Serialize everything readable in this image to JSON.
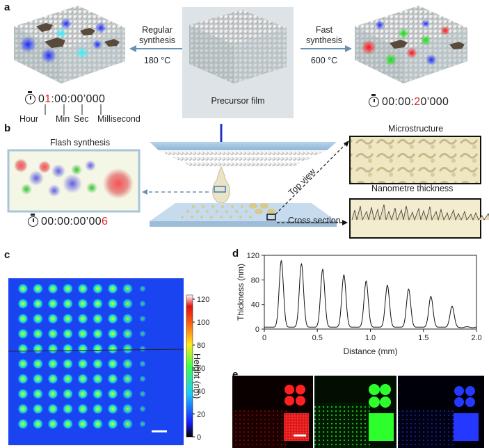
{
  "panels": {
    "a": "a",
    "b": "b",
    "c": "c",
    "d": "d",
    "e": "e"
  },
  "panel_a": {
    "regular_label": "Regular\nsynthesis",
    "regular_temp": "180 °C",
    "fast_label": "Fast\nsynthesis",
    "fast_temp": "600 °C",
    "precursor_label": "Precursor film",
    "timer_left": {
      "pre": "0",
      "red": "1",
      "post": ":00:00’000"
    },
    "timer_right": {
      "pre": "00:00:",
      "red": "2",
      "post": "0’000"
    },
    "time_units": [
      "Hour",
      "Min",
      "Sec",
      "Millisecond"
    ]
  },
  "panel_b": {
    "flash_title": "Flash synthesis",
    "timer_flash": {
      "pre": "00:00:00’00",
      "red": "6"
    },
    "microstructure": "Microstructure",
    "nanometre": "Nanometre thickness",
    "top_view": "Top view",
    "cross_section": "Cross section"
  },
  "panel_c": {
    "colorbar_title": "Height (nm)",
    "colorbar_ticks": [
      "120",
      "100",
      "80",
      "60",
      "40",
      "20",
      "0"
    ],
    "grid_rows": 10,
    "grid_cols": 9
  },
  "chart_data": {
    "type": "line",
    "xlabel": "Distance (mm)",
    "ylabel": "Thickness (nm)",
    "xlim": [
      0,
      2.0
    ],
    "ylim": [
      0,
      120
    ],
    "xticks": [
      "0",
      "0.5",
      "1.0",
      "1.5",
      "2.0"
    ],
    "yticks": [
      "0",
      "40",
      "80",
      "120"
    ],
    "peaks": [
      {
        "x": 0.16,
        "y": 111
      },
      {
        "x": 0.35,
        "y": 106
      },
      {
        "x": 0.55,
        "y": 97
      },
      {
        "x": 0.75,
        "y": 88
      },
      {
        "x": 0.96,
        "y": 78
      },
      {
        "x": 1.16,
        "y": 71
      },
      {
        "x": 1.36,
        "y": 65
      },
      {
        "x": 1.57,
        "y": 53
      },
      {
        "x": 1.77,
        "y": 37
      }
    ],
    "baseline": 3
  },
  "colors": {
    "heatmap_bg": "#1a44f0",
    "red_channel": "#ff1a1a",
    "green_channel": "#1aff1a",
    "blue_channel": "#2244ff"
  }
}
